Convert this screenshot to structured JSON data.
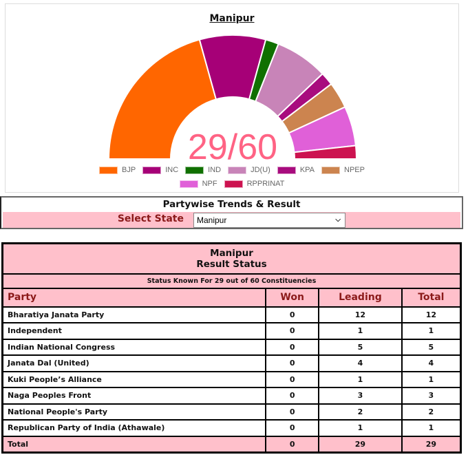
{
  "chart_panel": {
    "title": "Manipur",
    "center_label": "29/60",
    "center_label_color": "#ff6384"
  },
  "chart_data": {
    "type": "doughnut-half",
    "title": "Manipur",
    "center_text": "29/60",
    "categories": [
      "BJP",
      "INC",
      "IND",
      "JD(U)",
      "KPA",
      "NPEP",
      "NPF",
      "RPPRINAT"
    ],
    "values": [
      12,
      5,
      1,
      4,
      1,
      2,
      3,
      1
    ],
    "colors": [
      "#ff6600",
      "#a60077",
      "#107000",
      "#c884b8",
      "#a80c7e",
      "#cc844f",
      "#e060d8",
      "#cc1350"
    ],
    "legend_position": "bottom",
    "total_seats": 60,
    "status_known": 29
  },
  "trends": {
    "title": "Partywise Trends & Result",
    "select_label": "Select State",
    "select_value": "Manipur"
  },
  "results": {
    "state": "Manipur",
    "subtitle": "Result Status",
    "status_known": "Status Known For 29 out of 60 Constituencies",
    "columns": [
      "Party",
      "Won",
      "Leading",
      "Total"
    ],
    "rows": [
      {
        "party": "Bharatiya Janata Party",
        "won": "0",
        "leading": "12",
        "total": "12"
      },
      {
        "party": "Independent",
        "won": "0",
        "leading": "1",
        "total": "1"
      },
      {
        "party": "Indian National Congress",
        "won": "0",
        "leading": "5",
        "total": "5"
      },
      {
        "party": "Janata Dal (United)",
        "won": "0",
        "leading": "4",
        "total": "4"
      },
      {
        "party": "Kuki People’s Alliance",
        "won": "0",
        "leading": "1",
        "total": "1"
      },
      {
        "party": "Naga Peoples Front",
        "won": "0",
        "leading": "3",
        "total": "3"
      },
      {
        "party": "National People's Party",
        "won": "0",
        "leading": "2",
        "total": "2"
      },
      {
        "party": "Republican Party of India (Athawale)",
        "won": "0",
        "leading": "1",
        "total": "1"
      }
    ],
    "total": {
      "label": "Total",
      "won": "0",
      "leading": "29",
      "total": "29"
    }
  }
}
